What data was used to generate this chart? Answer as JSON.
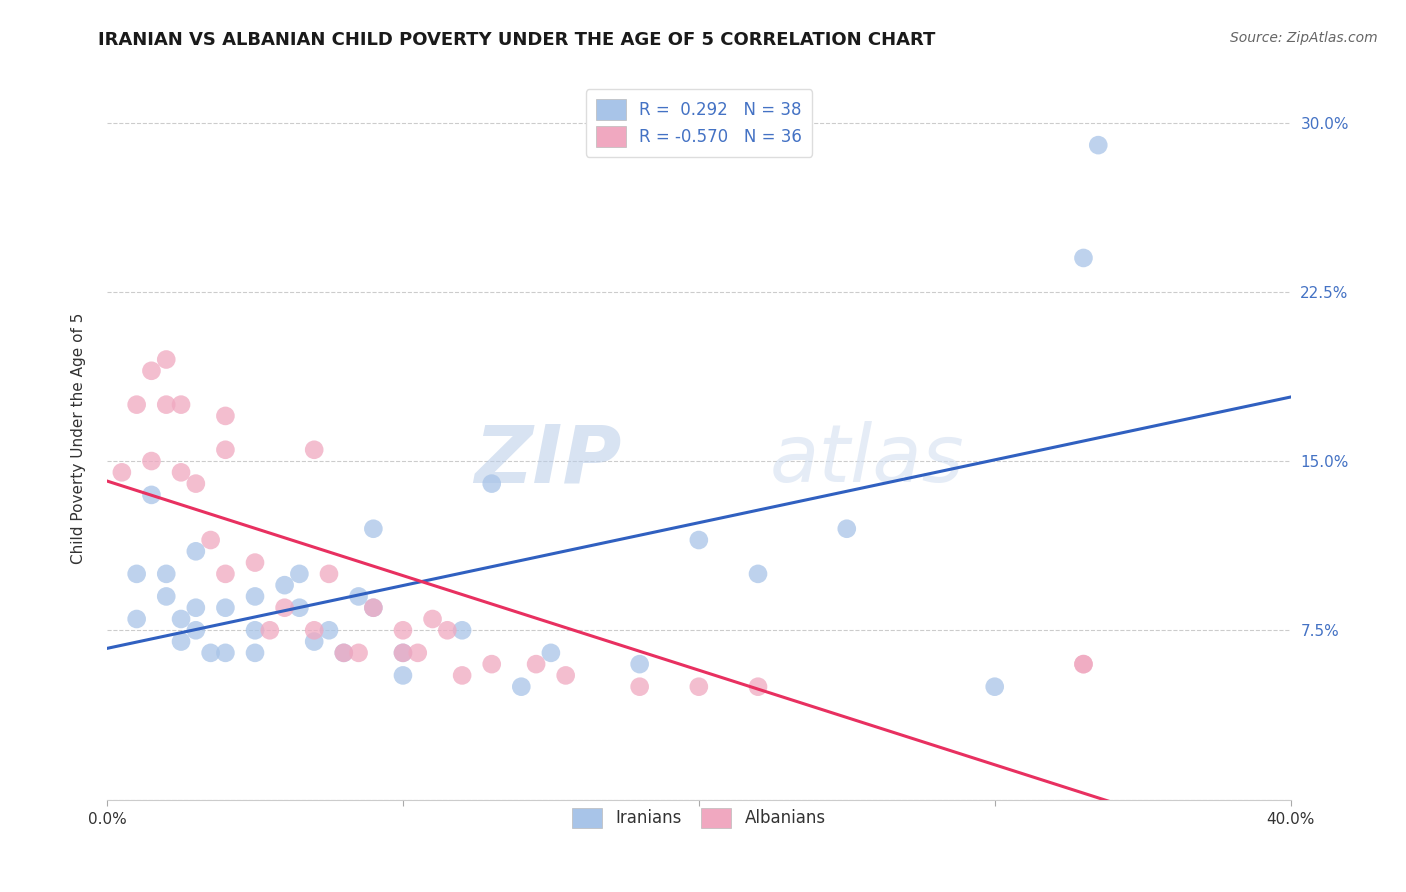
{
  "title": "IRANIAN VS ALBANIAN CHILD POVERTY UNDER THE AGE OF 5 CORRELATION CHART",
  "source": "Source: ZipAtlas.com",
  "ylabel": "Child Poverty Under the Age of 5",
  "xlim": [
    0.0,
    40.0
  ],
  "ylim": [
    0.0,
    32.0
  ],
  "xticks": [
    0.0,
    10.0,
    20.0,
    30.0,
    40.0
  ],
  "yticks": [
    0.0,
    7.5,
    15.0,
    22.5,
    30.0
  ],
  "xticklabels": [
    "0.0%",
    "",
    "",
    "",
    "40.0%"
  ],
  "yticklabels": [
    "",
    "7.5%",
    "15.0%",
    "22.5%",
    "30.0%"
  ],
  "iranian_color": "#a8c4e8",
  "albanian_color": "#f0a8c0",
  "line_iranian_color": "#3060c0",
  "line_albanian_color": "#e83060",
  "iranian_R": 0.292,
  "iranian_N": 38,
  "albanian_R": -0.57,
  "albanian_N": 36,
  "iranians_x": [
    1.0,
    1.0,
    1.5,
    2.0,
    2.0,
    2.5,
    2.5,
    3.0,
    3.0,
    3.0,
    3.5,
    4.0,
    4.0,
    5.0,
    5.0,
    5.0,
    6.0,
    6.5,
    6.5,
    7.0,
    7.5,
    8.0,
    8.5,
    9.0,
    9.0,
    10.0,
    10.0,
    12.0,
    13.0,
    14.0,
    15.0,
    18.0,
    20.0,
    22.0,
    25.0,
    30.0,
    33.0,
    33.5
  ],
  "iranians_y": [
    8.0,
    10.0,
    13.5,
    9.0,
    10.0,
    7.0,
    8.0,
    8.5,
    7.5,
    11.0,
    6.5,
    6.5,
    8.5,
    7.5,
    9.0,
    6.5,
    9.5,
    10.0,
    8.5,
    7.0,
    7.5,
    6.5,
    9.0,
    12.0,
    8.5,
    5.5,
    6.5,
    7.5,
    14.0,
    5.0,
    6.5,
    6.0,
    11.5,
    10.0,
    12.0,
    5.0,
    24.0,
    29.0
  ],
  "albanians_x": [
    0.5,
    1.0,
    1.5,
    1.5,
    2.0,
    2.0,
    2.5,
    2.5,
    3.0,
    3.5,
    4.0,
    4.0,
    4.0,
    5.0,
    5.5,
    6.0,
    7.0,
    7.0,
    7.5,
    8.0,
    8.5,
    9.0,
    10.0,
    10.0,
    10.5,
    11.0,
    11.5,
    12.0,
    13.0,
    14.5,
    15.5,
    18.0,
    20.0,
    22.0,
    33.0,
    33.0
  ],
  "albanians_y": [
    14.5,
    17.5,
    19.0,
    15.0,
    19.5,
    17.5,
    14.5,
    17.5,
    14.0,
    11.5,
    10.0,
    15.5,
    17.0,
    10.5,
    7.5,
    8.5,
    7.5,
    15.5,
    10.0,
    6.5,
    6.5,
    8.5,
    7.5,
    6.5,
    6.5,
    8.0,
    7.5,
    5.5,
    6.0,
    6.0,
    5.5,
    5.0,
    5.0,
    5.0,
    6.0,
    6.0
  ],
  "watermark_zip": "ZIP",
  "watermark_atlas": "atlas",
  "background_color": "#ffffff",
  "grid_color": "#cccccc",
  "tick_color_y": "#4472c4"
}
